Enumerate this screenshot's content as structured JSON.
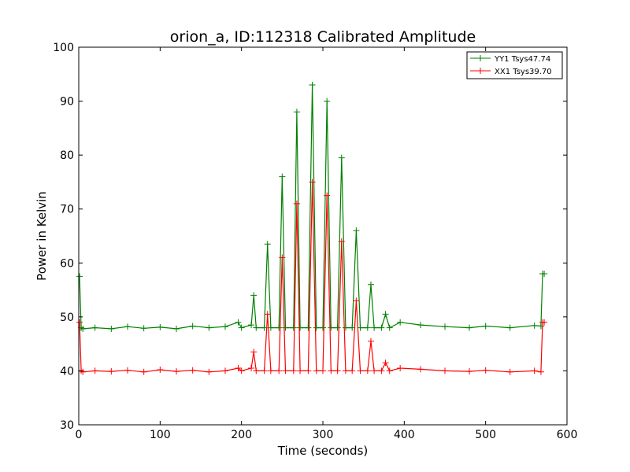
{
  "chart_data": {
    "type": "line",
    "title": "orion_a, ID:112318 Calibrated Amplitude",
    "xlabel": "Time (seconds)",
    "ylabel": "Power in Kelvin",
    "xlim": [
      0,
      600
    ],
    "ylim": [
      30,
      100
    ],
    "xticks": [
      0,
      100,
      200,
      300,
      400,
      500,
      600
    ],
    "yticks": [
      30,
      40,
      50,
      60,
      70,
      80,
      90,
      100
    ],
    "grid": false,
    "legend_position": "top-right",
    "marker": "+",
    "series": [
      {
        "name": "YY1 Tsys47.74",
        "color": "#008000",
        "x": [
          1,
          3,
          5,
          20,
          40,
          60,
          80,
          100,
          120,
          140,
          160,
          180,
          196,
          200,
          212,
          215,
          218,
          228,
          232,
          236,
          246,
          250,
          254,
          264,
          268,
          272,
          282,
          287,
          292,
          300,
          305,
          310,
          318,
          323,
          328,
          336,
          341,
          346,
          355,
          359,
          363,
          372,
          377,
          382,
          395,
          420,
          450,
          480,
          500,
          530,
          560,
          568,
          570,
          572
        ],
        "y": [
          57.5,
          48,
          47.8,
          48,
          47.8,
          48.2,
          47.9,
          48.1,
          47.8,
          48.3,
          48,
          48.2,
          49,
          48,
          48.5,
          54,
          48,
          48,
          63.5,
          48,
          48,
          76,
          48,
          48,
          88,
          48,
          48,
          93,
          48,
          48,
          90,
          48,
          48,
          79.5,
          48,
          48,
          66,
          48,
          48,
          56,
          48,
          48,
          50.5,
          48,
          49,
          48.5,
          48.2,
          48,
          48.3,
          48,
          48.4,
          48.3,
          58,
          58
        ]
      },
      {
        "name": "XX1 Tsys39.70",
        "color": "#ff0000",
        "x": [
          1,
          3,
          5,
          20,
          40,
          60,
          80,
          100,
          120,
          140,
          160,
          180,
          196,
          200,
          212,
          215,
          218,
          228,
          232,
          236,
          246,
          250,
          254,
          264,
          268,
          272,
          282,
          287,
          292,
          300,
          305,
          310,
          318,
          323,
          328,
          336,
          341,
          346,
          355,
          359,
          363,
          372,
          377,
          382,
          395,
          420,
          450,
          480,
          500,
          530,
          560,
          568,
          570,
          572
        ],
        "y": [
          49,
          40,
          39.8,
          40,
          39.9,
          40.1,
          39.8,
          40.2,
          39.9,
          40.1,
          39.8,
          40,
          40.5,
          40,
          40.5,
          43.5,
          40,
          40,
          50.5,
          40,
          40,
          61,
          40,
          40,
          71,
          40,
          40,
          75,
          40,
          40,
          72.5,
          40,
          40,
          64,
          40,
          40,
          53,
          40,
          40,
          45.5,
          40,
          40,
          41.5,
          40,
          40.5,
          40.3,
          40,
          39.9,
          40.1,
          39.8,
          40,
          39.8,
          49,
          49
        ]
      }
    ]
  }
}
